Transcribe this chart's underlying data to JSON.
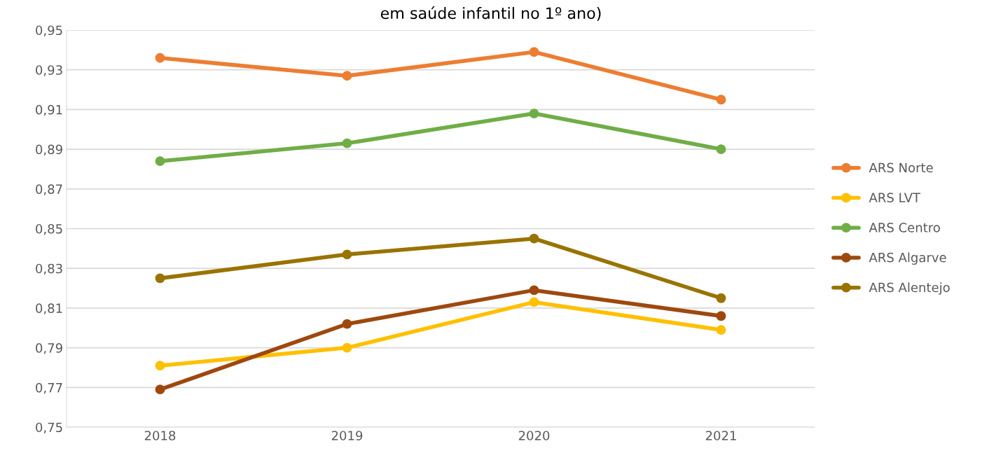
{
  "chart_data": {
    "type": "line",
    "title": "em saúde infantil no 1º ano)",
    "categories": [
      "2018",
      "2019",
      "2020",
      "2021"
    ],
    "series": [
      {
        "name": "ARS Norte",
        "color": "#ed7d31",
        "values": [
          0.936,
          0.927,
          0.939,
          0.915
        ]
      },
      {
        "name": "ARS LVT",
        "color": "#ffc000",
        "values": [
          0.781,
          0.79,
          0.813,
          0.799
        ]
      },
      {
        "name": "ARS Centro",
        "color": "#70ad47",
        "values": [
          0.884,
          0.893,
          0.908,
          0.89
        ]
      },
      {
        "name": "ARS Algarve",
        "color": "#9e480e",
        "values": [
          0.769,
          0.802,
          0.819,
          0.806
        ]
      },
      {
        "name": "ARS Alentejo",
        "color": "#997300",
        "values": [
          0.825,
          0.837,
          0.845,
          0.815
        ]
      }
    ],
    "ylim": [
      0.75,
      0.95
    ],
    "yticks": [
      {
        "value": 0.75,
        "label": "0,75"
      },
      {
        "value": 0.77,
        "label": "0,77"
      },
      {
        "value": 0.79,
        "label": "0,79"
      },
      {
        "value": 0.81,
        "label": "0,81"
      },
      {
        "value": 0.83,
        "label": "0,83"
      },
      {
        "value": 0.85,
        "label": "0,85"
      },
      {
        "value": 0.87,
        "label": "0,87"
      },
      {
        "value": 0.89,
        "label": "0,89"
      },
      {
        "value": 0.91,
        "label": "0,91"
      },
      {
        "value": 0.93,
        "label": "0,93"
      },
      {
        "value": 0.95,
        "label": "0,95"
      }
    ],
    "grid": "y",
    "legend": "right",
    "marker": "circle",
    "line_style": "solid"
  }
}
